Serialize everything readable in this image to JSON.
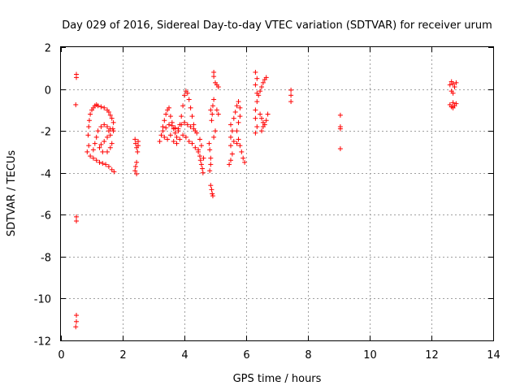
{
  "chart_data": {
    "type": "scatter",
    "title": "Day 029 of 2016, Sidereal Day-to-day VTEC variation (SDTVAR) for receiver urum",
    "xlabel": "GPS time / hours",
    "ylabel": "SDTVAR / TECUs",
    "xlim": [
      0,
      14
    ],
    "ylim": [
      -12,
      2
    ],
    "xticks": [
      0,
      2,
      4,
      6,
      8,
      10,
      12,
      14
    ],
    "yticks": [
      2,
      0,
      -2,
      -4,
      -6,
      -8,
      -10,
      -12
    ],
    "grid": true,
    "marker": "+",
    "marker_color": "#ff0000",
    "series": [
      {
        "points": [
          [
            0.5,
            0.7
          ],
          [
            0.5,
            0.55
          ],
          [
            0.48,
            -0.75
          ],
          [
            0.5,
            -6.1
          ],
          [
            0.5,
            -6.3
          ],
          [
            0.5,
            -10.8
          ],
          [
            0.5,
            -11.1
          ],
          [
            0.48,
            -11.35
          ],
          [
            0.85,
            -3.0
          ],
          [
            0.9,
            -2.7
          ],
          [
            0.88,
            -2.2
          ],
          [
            0.9,
            -1.8
          ],
          [
            0.92,
            -1.5
          ],
          [
            0.95,
            -1.2
          ],
          [
            1.0,
            -1.0
          ],
          [
            1.05,
            -0.9
          ],
          [
            1.1,
            -0.8
          ],
          [
            1.15,
            -0.75
          ],
          [
            1.2,
            -0.8
          ],
          [
            1.3,
            -0.85
          ],
          [
            1.4,
            -0.9
          ],
          [
            1.5,
            -1.0
          ],
          [
            1.55,
            -1.1
          ],
          [
            1.6,
            -1.25
          ],
          [
            1.65,
            -1.4
          ],
          [
            1.7,
            -1.6
          ],
          [
            1.68,
            -1.9
          ],
          [
            0.95,
            -3.2
          ],
          [
            1.05,
            -3.3
          ],
          [
            1.15,
            -3.4
          ],
          [
            1.25,
            -3.5
          ],
          [
            1.35,
            -3.55
          ],
          [
            1.45,
            -3.6
          ],
          [
            1.55,
            -3.7
          ],
          [
            1.65,
            -3.85
          ],
          [
            1.72,
            -3.95
          ],
          [
            1.05,
            -2.9
          ],
          [
            1.1,
            -2.6
          ],
          [
            1.15,
            -2.3
          ],
          [
            1.2,
            -2.0
          ],
          [
            1.3,
            -1.8
          ],
          [
            1.4,
            -1.7
          ],
          [
            1.5,
            -1.8
          ],
          [
            1.55,
            -2.0
          ],
          [
            1.5,
            -2.3
          ],
          [
            1.4,
            -2.5
          ],
          [
            1.3,
            -2.65
          ],
          [
            1.25,
            -2.8
          ],
          [
            1.35,
            -3.0
          ],
          [
            1.5,
            -3.0
          ],
          [
            1.6,
            -2.8
          ],
          [
            1.65,
            -2.6
          ],
          [
            1.6,
            -2.2
          ],
          [
            1.7,
            -2.0
          ],
          [
            1.6,
            -1.9
          ],
          [
            2.4,
            -2.4
          ],
          [
            2.42,
            -2.6
          ],
          [
            2.45,
            -2.8
          ],
          [
            2.48,
            -3.0
          ],
          [
            2.45,
            -3.5
          ],
          [
            2.42,
            -3.7
          ],
          [
            2.4,
            -3.9
          ],
          [
            2.45,
            -4.05
          ],
          [
            2.5,
            -2.5
          ],
          [
            2.5,
            -2.7
          ],
          [
            3.2,
            -2.5
          ],
          [
            3.25,
            -2.2
          ],
          [
            3.3,
            -1.8
          ],
          [
            3.35,
            -1.5
          ],
          [
            3.4,
            -1.2
          ],
          [
            3.45,
            -1.0
          ],
          [
            3.5,
            -0.9
          ],
          [
            3.55,
            -1.3
          ],
          [
            3.6,
            -1.6
          ],
          [
            3.65,
            -1.9
          ],
          [
            3.7,
            -2.1
          ],
          [
            3.75,
            -2.3
          ],
          [
            3.8,
            -2.0
          ],
          [
            3.85,
            -1.7
          ],
          [
            3.9,
            -1.3
          ],
          [
            3.95,
            -0.8
          ],
          [
            4.0,
            -0.3
          ],
          [
            4.05,
            -0.1
          ],
          [
            4.1,
            -0.2
          ],
          [
            4.15,
            -0.5
          ],
          [
            4.2,
            -0.9
          ],
          [
            4.25,
            -1.3
          ],
          [
            4.3,
            -1.7
          ],
          [
            4.35,
            -2.0
          ],
          [
            3.3,
            -2.0
          ],
          [
            3.4,
            -1.85
          ],
          [
            3.5,
            -1.7
          ],
          [
            3.6,
            -1.75
          ],
          [
            3.7,
            -1.85
          ],
          [
            3.8,
            -1.9
          ],
          [
            3.9,
            -1.7
          ],
          [
            4.0,
            -1.6
          ],
          [
            4.1,
            -1.7
          ],
          [
            4.2,
            -1.8
          ],
          [
            4.3,
            -1.9
          ],
          [
            4.4,
            -2.1
          ],
          [
            4.5,
            -2.4
          ],
          [
            4.55,
            -2.7
          ],
          [
            3.35,
            -2.3
          ],
          [
            3.45,
            -2.4
          ],
          [
            3.55,
            -2.2
          ],
          [
            3.65,
            -2.5
          ],
          [
            3.75,
            -2.6
          ],
          [
            3.85,
            -2.4
          ],
          [
            3.95,
            -2.2
          ],
          [
            4.05,
            -2.3
          ],
          [
            4.15,
            -2.5
          ],
          [
            4.25,
            -2.6
          ],
          [
            4.35,
            -2.8
          ],
          [
            4.45,
            -2.9
          ],
          [
            4.45,
            -3.0
          ],
          [
            4.5,
            -3.2
          ],
          [
            4.52,
            -3.4
          ],
          [
            4.55,
            -3.6
          ],
          [
            4.58,
            -3.8
          ],
          [
            4.6,
            -4.0
          ],
          [
            4.62,
            -3.3
          ],
          [
            4.8,
            -2.6
          ],
          [
            4.82,
            -2.9
          ],
          [
            4.85,
            -3.3
          ],
          [
            4.85,
            -3.6
          ],
          [
            4.82,
            -3.9
          ],
          [
            4.85,
            -1.0
          ],
          [
            4.9,
            -1.2
          ],
          [
            4.88,
            -1.5
          ],
          [
            4.92,
            -0.8
          ],
          [
            4.95,
            -0.5
          ],
          [
            4.85,
            -4.6
          ],
          [
            4.88,
            -4.8
          ],
          [
            4.9,
            -5.0
          ],
          [
            4.92,
            -5.1
          ],
          [
            4.95,
            0.8
          ],
          [
            4.95,
            0.6
          ],
          [
            5.0,
            0.3
          ],
          [
            5.05,
            0.2
          ],
          [
            5.1,
            0.1
          ],
          [
            5.05,
            -1.0
          ],
          [
            5.1,
            -1.2
          ],
          [
            5.0,
            -2.0
          ],
          [
            4.95,
            -2.3
          ],
          [
            5.45,
            -3.6
          ],
          [
            5.5,
            -3.4
          ],
          [
            5.55,
            -3.1
          ],
          [
            5.5,
            -2.7
          ],
          [
            5.5,
            -2.3
          ],
          [
            5.55,
            -2.0
          ],
          [
            5.5,
            -1.7
          ],
          [
            5.6,
            -1.4
          ],
          [
            5.65,
            -1.1
          ],
          [
            5.7,
            -0.8
          ],
          [
            5.75,
            -0.6
          ],
          [
            5.8,
            -0.9
          ],
          [
            5.8,
            -1.3
          ],
          [
            5.75,
            -1.6
          ],
          [
            5.7,
            -2.0
          ],
          [
            5.75,
            -2.4
          ],
          [
            5.8,
            -2.7
          ],
          [
            5.85,
            -3.0
          ],
          [
            5.9,
            -3.3
          ],
          [
            5.95,
            -3.5
          ],
          [
            5.6,
            -2.5
          ],
          [
            5.7,
            -2.6
          ],
          [
            6.3,
            0.8
          ],
          [
            6.35,
            0.5
          ],
          [
            6.3,
            0.2
          ],
          [
            6.35,
            -0.2
          ],
          [
            6.35,
            -0.6
          ],
          [
            6.3,
            -1.0
          ],
          [
            6.3,
            -1.4
          ],
          [
            6.35,
            -1.8
          ],
          [
            6.3,
            -2.1
          ],
          [
            6.4,
            -0.3
          ],
          [
            6.45,
            -0.1
          ],
          [
            6.5,
            0.1
          ],
          [
            6.55,
            0.3
          ],
          [
            6.6,
            0.45
          ],
          [
            6.65,
            0.55
          ],
          [
            6.45,
            -1.2
          ],
          [
            6.5,
            -1.4
          ],
          [
            6.55,
            -1.6
          ],
          [
            6.6,
            -1.7
          ],
          [
            6.65,
            -1.5
          ],
          [
            6.7,
            -1.2
          ],
          [
            6.55,
            -1.8
          ],
          [
            6.5,
            -2.0
          ],
          [
            7.45,
            -0.05
          ],
          [
            7.45,
            -0.3
          ],
          [
            7.45,
            -0.6
          ],
          [
            9.05,
            -1.25
          ],
          [
            9.05,
            -1.8
          ],
          [
            9.05,
            -1.9
          ],
          [
            9.05,
            -2.85
          ],
          [
            12.6,
            0.2
          ],
          [
            12.65,
            0.35
          ],
          [
            12.7,
            0.25
          ],
          [
            12.75,
            0.1
          ],
          [
            12.8,
            0.3
          ],
          [
            12.65,
            -0.1
          ],
          [
            12.7,
            -0.2
          ],
          [
            12.6,
            -0.75
          ],
          [
            12.65,
            -0.85
          ],
          [
            12.7,
            -0.9
          ],
          [
            12.75,
            -0.8
          ],
          [
            12.8,
            -0.7
          ],
          [
            12.7,
            -0.65
          ]
        ]
      }
    ]
  }
}
